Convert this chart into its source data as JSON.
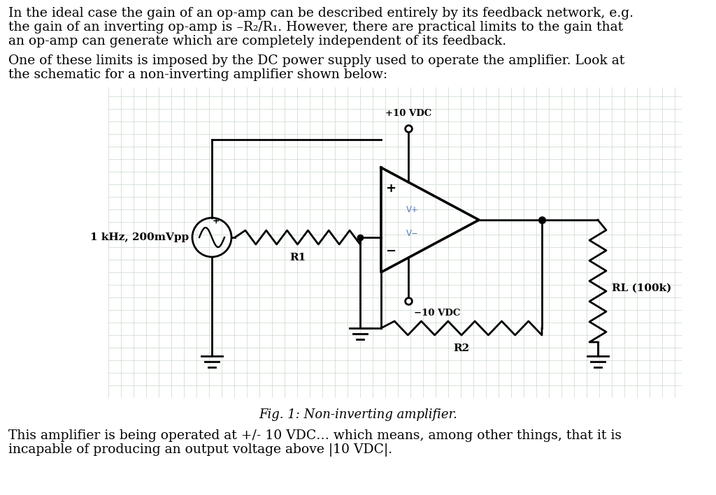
{
  "bg_color": "#ffffff",
  "grid_color": "#c8d8c8",
  "text_color": "#000000",
  "schematic_color": "#000000",
  "label_color": "#5577bb",
  "para1_line1": "In the ideal case the gain of an op-amp can be described entirely by its feedback network, e.g.",
  "para1_line2": "the gain of an inverting op-amp is –R₂/R₁. However, there are practical limits to the gain that",
  "para1_line3": "an op-amp can generate which are completely independent of its feedback.",
  "para2_line1": "One of these limits is imposed by the DC power supply used to operate the amplifier. Look at",
  "para2_line2": "the schematic for a non-inverting amplifier shown below:",
  "para3_line1": "This amplifier is being operated at +/- 10 VDC… which means, among other things, that it is",
  "para3_line2": "incapable of producing an output voltage above |10 VDC|.",
  "fig_caption": "Fig. 1: Non-inverting amplifier.",
  "label_source": "1 kHz, 200mVpp",
  "label_R1": "R1",
  "label_R2": "R2",
  "label_RL": "RL (100k)",
  "label_vplus": "+10 VDC",
  "label_vminus": "−10 VDC",
  "label_Vp": "V+",
  "label_Vm": "V−",
  "lw": 2.0,
  "font_size_body": 13.5,
  "font_size_caption": 13.0,
  "font_size_label": 11.0,
  "font_size_small": 8.5
}
